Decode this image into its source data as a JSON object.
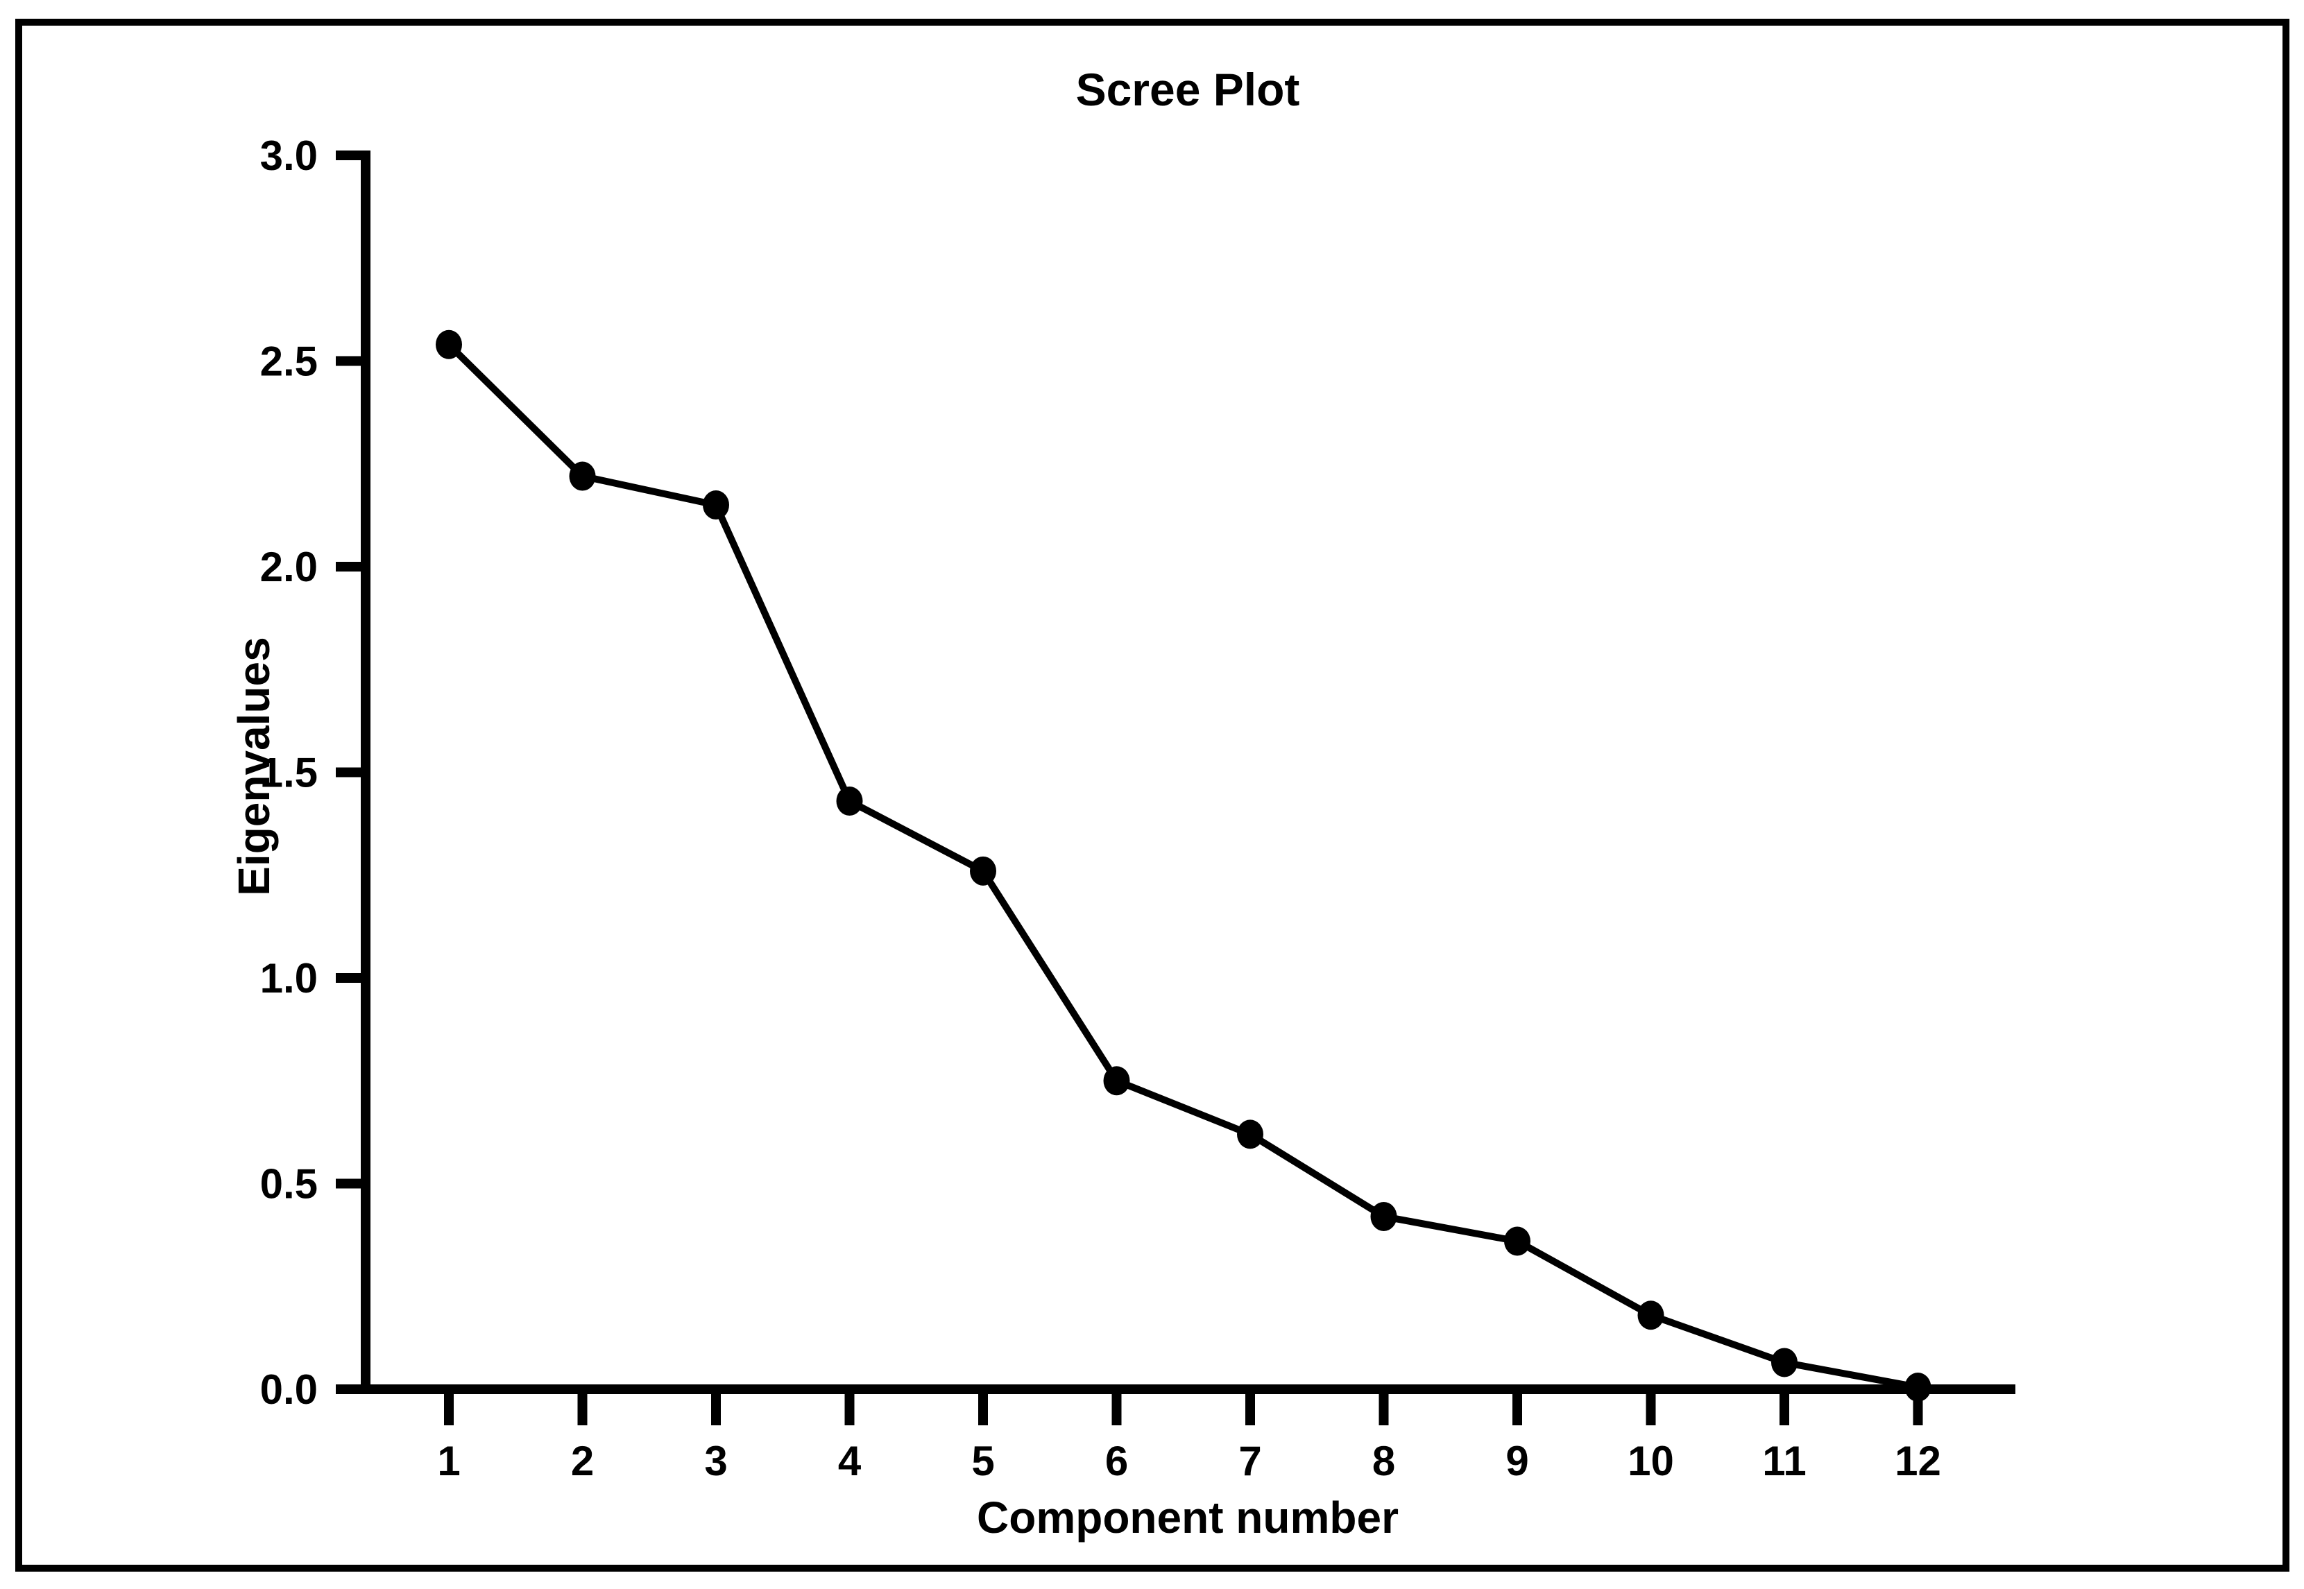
{
  "figure": {
    "background_color": "#ffffff",
    "border_color": "#000000",
    "ink_color": "#000000"
  },
  "chart_data": {
    "type": "line",
    "title": "Scree Plot",
    "xlabel": "Component number",
    "ylabel": "Eigenvalues",
    "categories": [
      1,
      2,
      3,
      4,
      5,
      6,
      7,
      8,
      9,
      10,
      11,
      12
    ],
    "series": [
      {
        "name": "Eigenvalues",
        "values": [
          2.54,
          2.22,
          2.15,
          1.43,
          1.26,
          0.75,
          0.62,
          0.42,
          0.36,
          0.18,
          0.065,
          0.005
        ]
      }
    ],
    "xtick_labels": [
      "1",
      "2",
      "3",
      "4",
      "5",
      "6",
      "7",
      "8",
      "9",
      "10",
      "11",
      "12"
    ],
    "yticks": [
      0.0,
      0.5,
      1.0,
      1.5,
      2.0,
      2.5,
      3.0
    ],
    "ytick_labels": [
      "0.0",
      "0.5",
      "1.0",
      "1.5",
      "2.0",
      "2.5",
      "3.0"
    ],
    "ylim": [
      0.0,
      3.0
    ],
    "grid": false,
    "legend": "none",
    "marker": "filled-circle",
    "line_color": "#000000",
    "marker_color": "#000000",
    "axis_color": "#000000"
  }
}
